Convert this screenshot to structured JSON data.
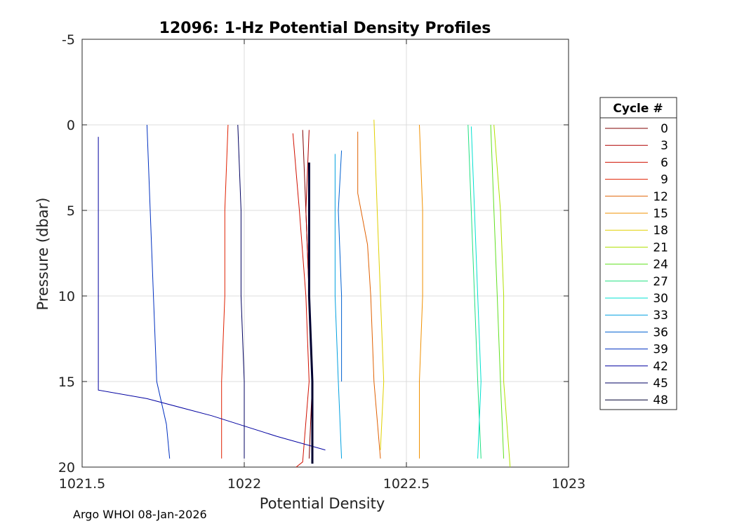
{
  "chart_data": {
    "type": "line",
    "title": "12096: 1-Hz Potential Density Profiles",
    "xlabel": "Potential Density",
    "ylabel": "Pressure (dbar)",
    "xlim": [
      1021.5,
      1023
    ],
    "ylim": [
      -5,
      20
    ],
    "y_reversed": true,
    "grid": true,
    "xticks": [
      1021.5,
      1022,
      1022.5,
      1023
    ],
    "xtick_labels": [
      "1021.5",
      "1022",
      "1022.5",
      "1023"
    ],
    "yticks": [
      -5,
      0,
      5,
      10,
      15,
      20
    ],
    "ytick_labels": [
      "-5",
      "0",
      "5",
      "10",
      "15",
      "20"
    ],
    "legend_title": "Cycle #",
    "legend_position": "right",
    "series": [
      {
        "name": "0",
        "color": "#800000",
        "points": [
          [
            1022.18,
            0.3
          ],
          [
            1022.19,
            5
          ],
          [
            1022.2,
            10
          ],
          [
            1022.21,
            15
          ],
          [
            1022.2,
            19.5
          ]
        ]
      },
      {
        "name": "3",
        "color": "#b00000",
        "points": [
          [
            1022.2,
            0.3
          ],
          [
            1022.19,
            5
          ],
          [
            1022.2,
            10
          ],
          [
            1022.21,
            15
          ],
          [
            1022.21,
            19.5
          ]
        ]
      },
      {
        "name": "6",
        "color": "#d01000",
        "points": [
          [
            1022.15,
            0.5
          ],
          [
            1022.17,
            5
          ],
          [
            1022.19,
            10
          ],
          [
            1022.2,
            15
          ],
          [
            1022.18,
            19.7
          ],
          [
            1022.16,
            20
          ]
        ]
      },
      {
        "name": "9",
        "color": "#e02000",
        "points": [
          [
            1021.95,
            0
          ],
          [
            1021.94,
            5
          ],
          [
            1021.94,
            10
          ],
          [
            1021.93,
            15
          ],
          [
            1021.93,
            19.5
          ]
        ]
      },
      {
        "name": "12",
        "color": "#e06000",
        "points": [
          [
            1022.35,
            0.4
          ],
          [
            1022.35,
            4
          ],
          [
            1022.38,
            7
          ],
          [
            1022.39,
            10
          ],
          [
            1022.4,
            15
          ],
          [
            1022.42,
            19.5
          ]
        ]
      },
      {
        "name": "15",
        "color": "#f09000",
        "points": [
          [
            1022.54,
            0
          ],
          [
            1022.55,
            5
          ],
          [
            1022.55,
            10
          ],
          [
            1022.54,
            15
          ],
          [
            1022.54,
            19.5
          ]
        ]
      },
      {
        "name": "18",
        "color": "#e0d000",
        "points": [
          [
            1022.4,
            -0.3
          ],
          [
            1022.41,
            5
          ],
          [
            1022.42,
            10
          ],
          [
            1022.43,
            15
          ],
          [
            1022.42,
            19
          ]
        ]
      },
      {
        "name": "21",
        "color": "#b0e000",
        "points": [
          [
            1022.77,
            0
          ],
          [
            1022.79,
            5
          ],
          [
            1022.8,
            10
          ],
          [
            1022.8,
            15
          ],
          [
            1022.82,
            20
          ]
        ]
      },
      {
        "name": "24",
        "color": "#60e020",
        "points": [
          [
            1022.76,
            0
          ],
          [
            1022.77,
            5
          ],
          [
            1022.78,
            10
          ],
          [
            1022.79,
            15
          ],
          [
            1022.8,
            19.5
          ]
        ]
      },
      {
        "name": "27",
        "color": "#20e080",
        "points": [
          [
            1022.69,
            0
          ],
          [
            1022.7,
            5
          ],
          [
            1022.71,
            10
          ],
          [
            1022.72,
            15
          ],
          [
            1022.73,
            19.5
          ]
        ]
      },
      {
        "name": "30",
        "color": "#00e0d0",
        "points": [
          [
            1022.7,
            0.1
          ],
          [
            1022.71,
            5
          ],
          [
            1022.72,
            10
          ],
          [
            1022.73,
            15
          ],
          [
            1022.72,
            19.5
          ]
        ]
      },
      {
        "name": "33",
        "color": "#00a0e0",
        "points": [
          [
            1022.28,
            1.7
          ],
          [
            1022.28,
            5
          ],
          [
            1022.28,
            10
          ],
          [
            1022.29,
            15
          ],
          [
            1022.3,
            19.5
          ]
        ]
      },
      {
        "name": "36",
        "color": "#0060d0",
        "points": [
          [
            1022.3,
            1.5
          ],
          [
            1022.29,
            5
          ],
          [
            1022.3,
            10
          ],
          [
            1022.3,
            15
          ]
        ]
      },
      {
        "name": "39",
        "color": "#0030c0",
        "points": [
          [
            1021.7,
            0
          ],
          [
            1021.71,
            5
          ],
          [
            1021.72,
            10
          ],
          [
            1021.73,
            15
          ],
          [
            1021.76,
            17.5
          ],
          [
            1021.77,
            19.5
          ]
        ]
      },
      {
        "name": "42",
        "color": "#0000a0",
        "points": [
          [
            1021.55,
            0.7
          ],
          [
            1021.55,
            5
          ],
          [
            1021.55,
            10
          ],
          [
            1021.55,
            15.5
          ],
          [
            1021.7,
            16
          ],
          [
            1021.9,
            17
          ],
          [
            1022.1,
            18.2
          ],
          [
            1022.25,
            19
          ]
        ]
      },
      {
        "name": "45",
        "color": "#000060",
        "points": [
          [
            1021.98,
            0
          ],
          [
            1021.99,
            5
          ],
          [
            1021.99,
            10
          ],
          [
            1022,
            15
          ],
          [
            1022,
            19.5
          ]
        ]
      },
      {
        "name": "48",
        "color": "#000030",
        "points": [
          [
            1022.2,
            2.2
          ],
          [
            1022.2,
            5
          ],
          [
            1022.2,
            10
          ],
          [
            1022.21,
            15
          ],
          [
            1022.21,
            19.8
          ]
        ]
      }
    ]
  },
  "footer": "Argo WHOI 08-Jan-2026"
}
